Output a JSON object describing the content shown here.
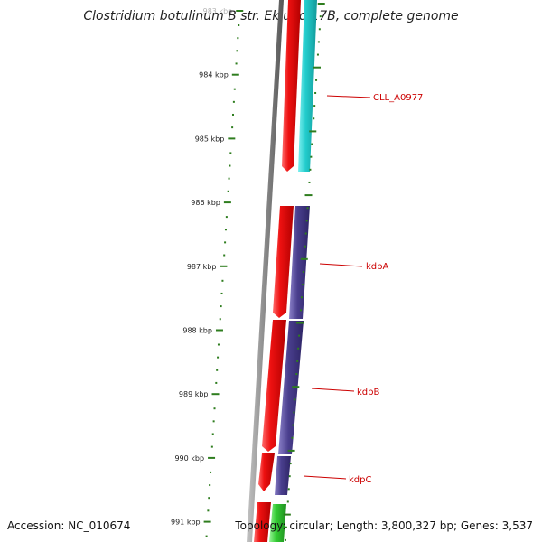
{
  "title": "Clostridium botulinum B str. Eklund 17B, complete genome",
  "footer": {
    "accession": "Accession: NC_010674",
    "summary": "Topology: circular; Length: 3,800,327 bp; Genes: 3,537"
  },
  "colors": {
    "backbone": "#8a8a8a",
    "tick": "#2e7d1e",
    "forward_cds": "#ee1111",
    "reverse_a": "#22cccc",
    "reverse_b": "#4a3f8e",
    "forward_green": "#33cc33",
    "label": "#cc0000"
  },
  "ticks": [
    "983 kbp",
    "984 kbp",
    "985 kbp",
    "986 kbp",
    "987 kbp",
    "988 kbp",
    "989 kbp",
    "990 kbp",
    "991 kbp"
  ],
  "genes": [
    {
      "label": "CLL_A0977"
    },
    {
      "label": "kdpA"
    },
    {
      "label": "kdpB"
    },
    {
      "label": "kdpC"
    }
  ]
}
